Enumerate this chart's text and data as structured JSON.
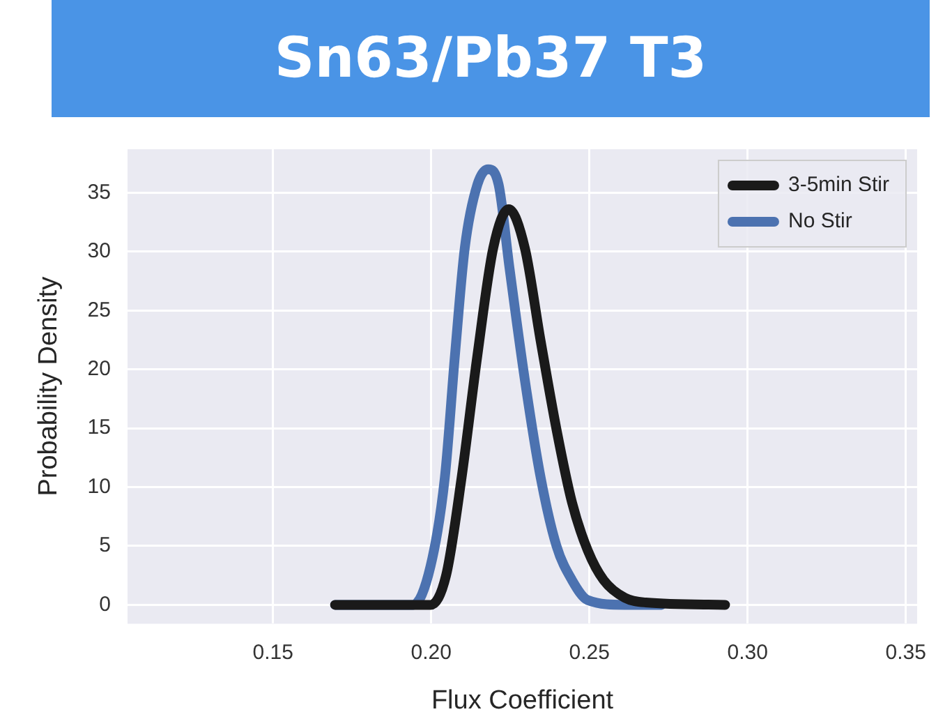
{
  "chart_data": {
    "type": "line",
    "title": "Sn63/Pb37 T3",
    "xlabel": "Flux Coefficient",
    "ylabel": "Probability Density",
    "xlim": [
      0.104,
      0.3536
    ],
    "xticks": [
      {
        "value": 0.15,
        "label": "0.15"
      },
      {
        "value": 0.2,
        "label": "0.20"
      },
      {
        "value": 0.25,
        "label": "0.25"
      },
      {
        "value": 0.3,
        "label": "0.30"
      },
      {
        "value": 0.35,
        "label": "0.35"
      }
    ],
    "ylim": [
      -1.6,
      38.7
    ],
    "yticks": [
      0,
      5,
      10,
      15,
      20,
      25,
      30,
      35
    ],
    "grid": true,
    "legend": "top right",
    "marker": "none",
    "line_style": "solid",
    "series": [
      {
        "name": "3-5min Stir",
        "color": "#1a1a1a",
        "x": [
          0.1696,
          0.185,
          0.1998,
          0.2047,
          0.2096,
          0.2146,
          0.2196,
          0.2245,
          0.2296,
          0.2346,
          0.2396,
          0.2445,
          0.2495,
          0.2545,
          0.2612,
          0.2678,
          0.2929
        ],
        "values": [
          0,
          0,
          0,
          2.5,
          10.8,
          21.2,
          30.3,
          33.6,
          30.3,
          22.4,
          14.9,
          8.7,
          4.6,
          2.1,
          0.6,
          0.2,
          0
        ]
      },
      {
        "name": "No Stir",
        "color": "#4c72b0",
        "x": [
          0.1696,
          0.185,
          0.1943,
          0.1998,
          0.2043,
          0.2075,
          0.2106,
          0.2146,
          0.218,
          0.2213,
          0.2247,
          0.2296,
          0.2346,
          0.2396,
          0.2445,
          0.2495,
          0.2612,
          0.2728
        ],
        "values": [
          0,
          0,
          0,
          3.3,
          10.8,
          21.2,
          30.3,
          35.7,
          37.0,
          35.7,
          28.7,
          19.1,
          10.8,
          5.0,
          2.1,
          0.4,
          0,
          0
        ]
      }
    ]
  }
}
